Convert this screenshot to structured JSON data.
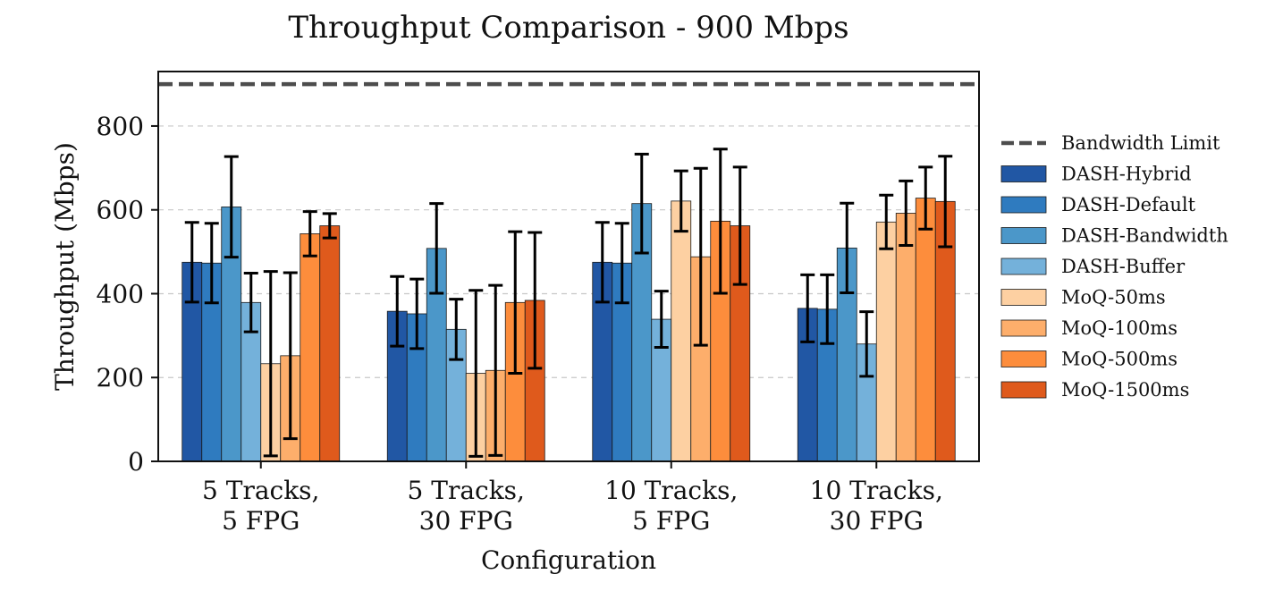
{
  "chart_data": {
    "type": "bar",
    "title": "Throughput Comparison - 900 Mbps",
    "xlabel": "Configuration",
    "ylabel": "Throughput (Mbps)",
    "ylim": [
      0,
      930
    ],
    "yticks": [
      0,
      200,
      400,
      600,
      800
    ],
    "grid": true,
    "legend_position": "right",
    "categories": [
      [
        "5 Tracks,",
        "5 FPG"
      ],
      [
        "5 Tracks,",
        "30 FPG"
      ],
      [
        "10 Tracks,",
        "5 FPG"
      ],
      [
        "10 Tracks,",
        "30 FPG"
      ]
    ],
    "reference_line": {
      "name": "Bandwidth Limit",
      "value": 900,
      "color": "#4d4d4d"
    },
    "series": [
      {
        "name": "DASH-Hybrid",
        "color": "#2157a4",
        "values": [
          475,
          358,
          475,
          365
        ],
        "err": [
          95,
          83,
          95,
          80
        ]
      },
      {
        "name": "DASH-Default",
        "color": "#2f7bbf",
        "values": [
          473,
          352,
          473,
          363
        ],
        "err": [
          95,
          83,
          95,
          82
        ]
      },
      {
        "name": "DASH-Bandwidth",
        "color": "#4b97c9",
        "values": [
          607,
          508,
          615,
          509
        ],
        "err": [
          120,
          107,
          118,
          107
        ]
      },
      {
        "name": "DASH-Buffer",
        "color": "#74b1da",
        "values": [
          379,
          315,
          339,
          280
        ],
        "err": [
          70,
          72,
          67,
          77
        ]
      },
      {
        "name": "MoQ-50ms",
        "color": "#fdd0a2",
        "values": [
          233,
          210,
          621,
          571
        ],
        "err": [
          220,
          198,
          72,
          64
        ]
      },
      {
        "name": "MoQ-100ms",
        "color": "#fdae6b",
        "values": [
          252,
          217,
          488,
          592
        ],
        "err": [
          198,
          203,
          211,
          77
        ]
      },
      {
        "name": "MoQ-500ms",
        "color": "#fd8d3c",
        "values": [
          543,
          379,
          573,
          628
        ],
        "err": [
          53,
          169,
          172,
          74
        ]
      },
      {
        "name": "MoQ-1500ms",
        "color": "#df5a1c",
        "values": [
          562,
          384,
          562,
          620
        ],
        "err": [
          29,
          162,
          140,
          108
        ]
      }
    ]
  }
}
